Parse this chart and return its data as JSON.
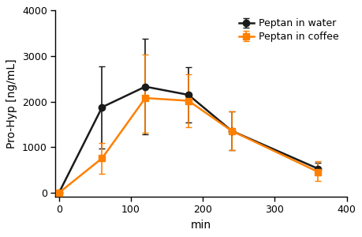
{
  "x": [
    0,
    60,
    120,
    180,
    240,
    360
  ],
  "water_y": [
    0,
    1880,
    2330,
    2150,
    1360,
    530
  ],
  "water_yerr_upper": [
    0,
    900,
    1050,
    600,
    430,
    130
  ],
  "water_yerr_lower": [
    0,
    900,
    1050,
    600,
    430,
    130
  ],
  "coffee_y": [
    0,
    760,
    2080,
    2020,
    1360,
    460
  ],
  "coffee_yerr_upper": [
    0,
    340,
    950,
    580,
    420,
    230
  ],
  "coffee_yerr_lower": [
    0,
    340,
    760,
    580,
    420,
    200
  ],
  "water_color": "#1a1a1a",
  "coffee_color": "#FF8000",
  "water_label": "Peptan in water",
  "coffee_label": "Peptan in coffee",
  "xlabel": "min",
  "ylabel": "Pro-Hyp [ng/mL]",
  "xlim": [
    -5,
    400
  ],
  "ylim": [
    -80,
    4000
  ],
  "yticks": [
    0,
    1000,
    2000,
    3000,
    4000
  ],
  "xticks": [
    0,
    100,
    200,
    300,
    400
  ],
  "marker_water": "o",
  "marker_coffee": "s",
  "markersize": 6,
  "linewidth": 1.8,
  "capsize": 3,
  "legend_fontsize": 9,
  "axis_fontsize": 10,
  "tick_fontsize": 9
}
